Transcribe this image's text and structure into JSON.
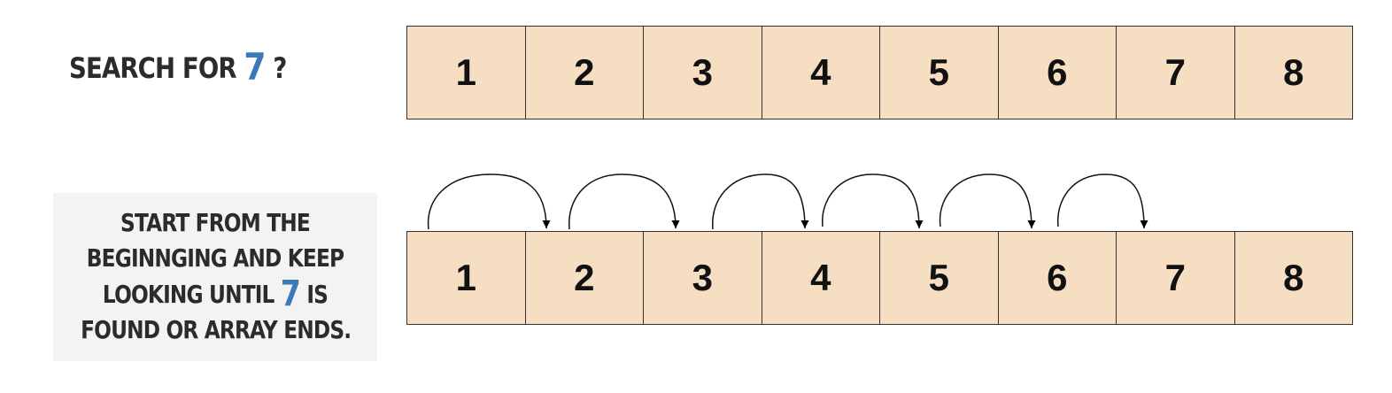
{
  "title": {
    "prefix": "SEARCH FOR ",
    "target": "7",
    "suffix": " ?"
  },
  "note": {
    "line1": "START FROM THE",
    "line2": "BEGINNGING AND KEEP",
    "line3_prefix": "LOOKING UNTIL ",
    "line3_target": "7",
    "line3_suffix": " IS",
    "line4": "FOUND OR ARRAY ENDS."
  },
  "colors": {
    "highlight": "#3a7ab8",
    "cell_fill": "#f5dec1"
  },
  "array_top": [
    "1",
    "2",
    "3",
    "4",
    "5",
    "6",
    "7",
    "8"
  ],
  "array_bottom": [
    "1",
    "2",
    "3",
    "4",
    "5",
    "6",
    "7",
    "8"
  ]
}
